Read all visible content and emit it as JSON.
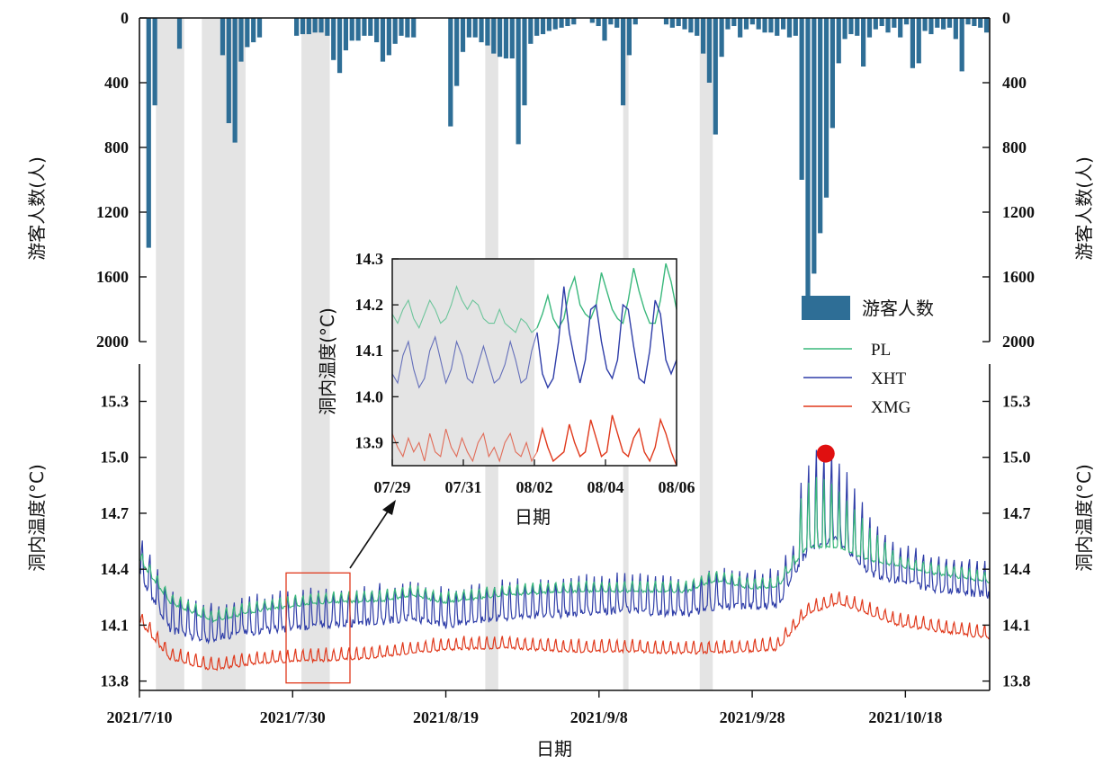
{
  "chart_data": {
    "type": "bar+line",
    "title": "",
    "xlabel": "日期",
    "x_ticks": [
      "2021/7/10",
      "2021/7/30",
      "2021/8/19",
      "2021/9/8",
      "2021/9/28",
      "2021/10/18"
    ],
    "x_range": [
      "2021/7/10",
      "2021/10/29"
    ],
    "top_panel": {
      "type": "bar",
      "ylabel": "游客人数(人)",
      "y_axis": "inverted",
      "ylim": [
        0,
        2000
      ],
      "y_ticks": [
        "0",
        "400",
        "800",
        "1200",
        "1600",
        "2000"
      ],
      "series_name": "游客人数",
      "color": "#2e6e96",
      "values": [
        0,
        1420,
        540,
        0,
        0,
        0,
        190,
        0,
        0,
        0,
        0,
        0,
        0,
        230,
        650,
        770,
        270,
        180,
        150,
        120,
        0,
        0,
        0,
        0,
        0,
        110,
        100,
        100,
        90,
        90,
        110,
        260,
        340,
        200,
        140,
        140,
        110,
        110,
        150,
        270,
        230,
        160,
        110,
        120,
        120,
        0,
        0,
        0,
        0,
        0,
        670,
        420,
        210,
        120,
        120,
        150,
        170,
        220,
        240,
        250,
        250,
        780,
        540,
        160,
        110,
        100,
        80,
        70,
        60,
        50,
        40,
        0,
        0,
        30,
        50,
        140,
        40,
        60,
        540,
        230,
        40,
        0,
        0,
        0,
        0,
        40,
        60,
        50,
        70,
        90,
        110,
        220,
        400,
        720,
        240,
        70,
        50,
        120,
        70,
        40,
        70,
        90,
        90,
        110,
        70,
        120,
        110,
        1000,
        1750,
        1580,
        1330,
        1110,
        680,
        280,
        130,
        100,
        110,
        300,
        120,
        70,
        50,
        90,
        60,
        120,
        40,
        310,
        280,
        80,
        100,
        60,
        70,
        60,
        130,
        330,
        40,
        50,
        60,
        90
      ]
    },
    "bottom_panel": {
      "type": "line",
      "ylabel": "洞内温度(°C)",
      "ylim": [
        13.75,
        15.5
      ],
      "y_ticks": [
        "13.8",
        "14.1",
        "14.4",
        "14.7",
        "15.0",
        "15.3"
      ],
      "series": [
        {
          "name": "PL",
          "color": "#3ab87c",
          "base": [
            [
              0,
              14.45
            ],
            [
              5,
              14.22
            ],
            [
              12,
              14.12
            ],
            [
              20,
              14.18
            ],
            [
              30,
              14.22
            ],
            [
              40,
              14.23
            ],
            [
              45,
              14.26
            ],
            [
              50,
              14.22
            ],
            [
              60,
              14.26
            ],
            [
              70,
              14.28
            ],
            [
              80,
              14.28
            ],
            [
              90,
              14.28
            ],
            [
              95,
              14.34
            ],
            [
              100,
              14.3
            ],
            [
              105,
              14.3
            ],
            [
              110,
              14.52
            ],
            [
              115,
              14.52
            ],
            [
              120,
              14.45
            ],
            [
              130,
              14.38
            ],
            [
              140,
              14.33
            ]
          ],
          "amp": 0.035
        },
        {
          "name": "XHT",
          "color": "#2e3da8",
          "base": [
            [
              0,
              14.38
            ],
            [
              5,
              14.08
            ],
            [
              10,
              14.02
            ],
            [
              20,
              14.07
            ],
            [
              30,
              14.1
            ],
            [
              40,
              14.12
            ],
            [
              45,
              14.14
            ],
            [
              50,
              14.1
            ],
            [
              60,
              14.14
            ],
            [
              70,
              14.16
            ],
            [
              80,
              14.18
            ],
            [
              90,
              14.16
            ],
            [
              95,
              14.2
            ],
            [
              105,
              14.2
            ],
            [
              110,
              14.5
            ],
            [
              115,
              14.56
            ],
            [
              120,
              14.38
            ],
            [
              130,
              14.3
            ],
            [
              140,
              14.26
            ]
          ],
          "amp": 0.12
        },
        {
          "name": "XMG",
          "color": "#e0391c",
          "base": [
            [
              0,
              14.12
            ],
            [
              5,
              13.92
            ],
            [
              12,
              13.86
            ],
            [
              20,
              13.9
            ],
            [
              30,
              13.91
            ],
            [
              40,
              13.93
            ],
            [
              50,
              13.97
            ],
            [
              60,
              13.98
            ],
            [
              70,
              13.96
            ],
            [
              80,
              13.96
            ],
            [
              90,
              13.95
            ],
            [
              100,
              13.96
            ],
            [
              105,
              13.97
            ],
            [
              110,
              14.16
            ],
            [
              115,
              14.22
            ],
            [
              125,
              14.1
            ],
            [
              140,
              14.03
            ]
          ],
          "amp": 0.04
        }
      ],
      "marker": {
        "day": 113,
        "value": 15.02,
        "color": "#e01010"
      }
    },
    "shaded_periods": [
      [
        2,
        6
      ],
      [
        8,
        14
      ],
      [
        21,
        25
      ],
      [
        45,
        47
      ],
      [
        63,
        64
      ],
      [
        73,
        75
      ]
    ],
    "shading_color": "#e4e4e4",
    "highlight_box": {
      "day_start": 21,
      "day_end": 30,
      "value_range": [
        13.79,
        14.38
      ],
      "color": "#e0391c"
    },
    "inset": {
      "type": "line",
      "xlabel": "日期",
      "ylabel": "洞内温度(°C)",
      "x_ticks": [
        "07/29",
        "07/31",
        "08/02",
        "08/04",
        "08/06"
      ],
      "ylim": [
        13.85,
        14.3
      ],
      "y_ticks": [
        "13.9",
        "14.0",
        "14.1",
        "14.2",
        "14.3"
      ],
      "shaded_until": "08/02",
      "series": [
        {
          "name": "PL",
          "color": "#3ab87c",
          "values": [
            14.18,
            14.16,
            14.19,
            14.21,
            14.17,
            14.15,
            14.18,
            14.21,
            14.19,
            14.16,
            14.17,
            14.2,
            14.24,
            14.21,
            14.19,
            14.21,
            14.2,
            14.17,
            14.16,
            14.16,
            14.19,
            14.16,
            14.15,
            14.14,
            14.17,
            14.16,
            14.14,
            14.15,
            14.18,
            14.22,
            14.17,
            14.15,
            14.17,
            14.23,
            14.26,
            14.2,
            14.18,
            14.17,
            14.2,
            14.27,
            14.23,
            14.19,
            14.17,
            14.16,
            14.21,
            14.28,
            14.23,
            14.19,
            14.16,
            14.16,
            14.21,
            14.29,
            14.25,
            14.19
          ]
        },
        {
          "name": "XHT",
          "color": "#2e3da8",
          "values": [
            14.05,
            14.03,
            14.09,
            14.12,
            14.06,
            14.02,
            14.04,
            14.1,
            14.13,
            14.08,
            14.03,
            14.06,
            14.12,
            14.09,
            14.04,
            14.03,
            14.07,
            14.11,
            14.07,
            14.03,
            14.04,
            14.07,
            14.12,
            14.08,
            14.03,
            14.04,
            14.1,
            14.14,
            14.05,
            14.02,
            14.04,
            14.12,
            14.24,
            14.14,
            14.08,
            14.03,
            14.08,
            14.19,
            14.2,
            14.12,
            14.06,
            14.04,
            14.08,
            14.2,
            14.19,
            14.11,
            14.04,
            14.03,
            14.1,
            14.21,
            14.18,
            14.08,
            14.05,
            14.08
          ]
        },
        {
          "name": "XMG",
          "color": "#e0391c",
          "values": [
            13.92,
            13.89,
            13.87,
            13.91,
            13.88,
            13.9,
            13.86,
            13.92,
            13.88,
            13.87,
            13.93,
            13.89,
            13.87,
            13.91,
            13.88,
            13.86,
            13.9,
            13.92,
            13.87,
            13.89,
            13.86,
            13.9,
            13.92,
            13.88,
            13.87,
            13.9,
            13.86,
            13.88,
            13.93,
            13.89,
            13.86,
            13.87,
            13.88,
            13.94,
            13.9,
            13.87,
            13.88,
            13.95,
            13.91,
            13.87,
            13.88,
            13.96,
            13.92,
            13.88,
            13.87,
            13.91,
            13.93,
            13.88,
            13.86,
            13.89,
            13.95,
            13.92,
            13.88,
            13.85
          ]
        }
      ]
    },
    "legend": {
      "position": "right",
      "items": [
        "游客人数",
        "PL",
        "XHT",
        "XMG"
      ]
    }
  }
}
